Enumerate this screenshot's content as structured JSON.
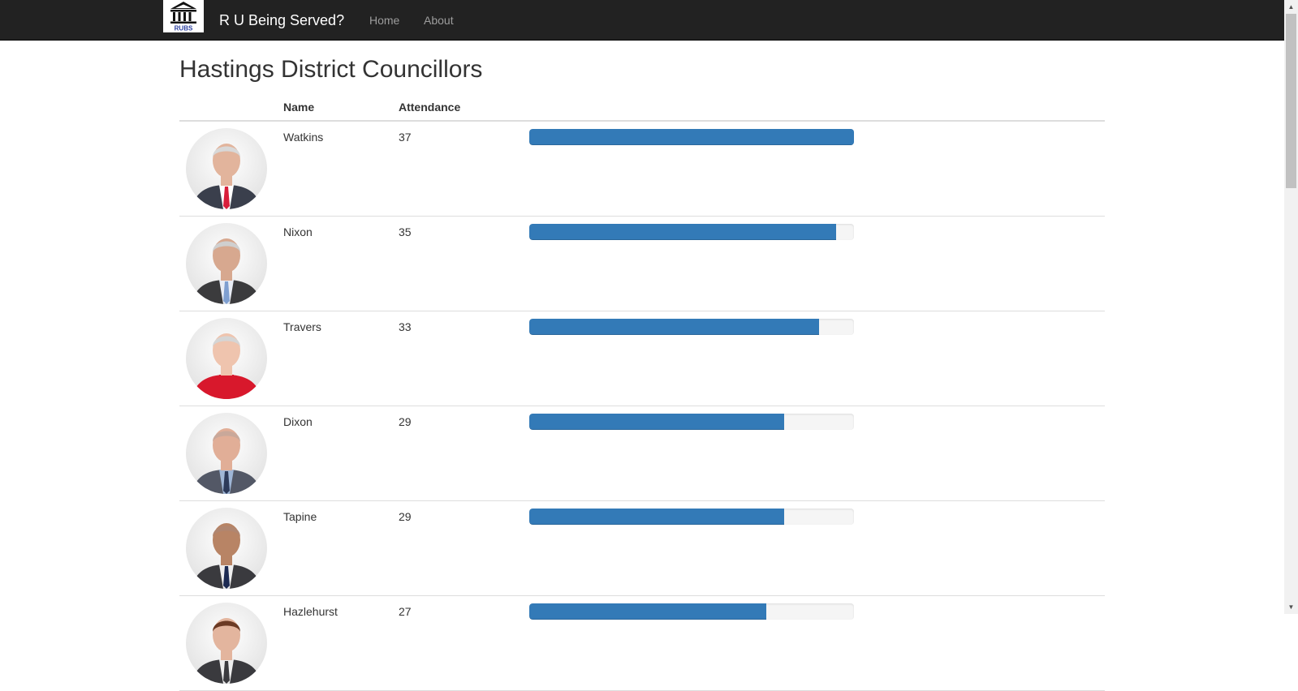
{
  "navbar": {
    "logo_text": "RUBS",
    "brand": "R U Being Served?",
    "links": [
      {
        "label": "Home"
      },
      {
        "label": "About"
      }
    ]
  },
  "page": {
    "title": "Hastings District Councillors"
  },
  "table": {
    "columns": [
      "",
      "Name",
      "Attendance",
      ""
    ],
    "max_attendance": 37,
    "rows": [
      {
        "name": "Watkins",
        "attendance": "37",
        "value": 37,
        "hair": "#d8d8d8",
        "skin": "#e2b49c",
        "jacket": "#3a3f4c",
        "shirt": "#ffffff",
        "tie": "#d81e3a"
      },
      {
        "name": "Nixon",
        "attendance": "35",
        "value": 35,
        "hair": "#cfcfcf",
        "skin": "#d7a88f",
        "jacket": "#3b3b3d",
        "shirt": "#e9edf5",
        "tie": "#7f9fd0"
      },
      {
        "name": "Travers",
        "attendance": "33",
        "value": 33,
        "hair": "#d5d5d5",
        "skin": "#efc4ae",
        "jacket": "#d8182c",
        "shirt": "#d8182c",
        "tie": "#d8182c"
      },
      {
        "name": "Dixon",
        "attendance": "29",
        "value": 29,
        "hair": "#c9a89a",
        "skin": "#e1ae97",
        "jacket": "#535866",
        "shirt": "#9fb6d6",
        "tie": "#2c3a5a"
      },
      {
        "name": "Tapine",
        "attendance": "29",
        "value": 29,
        "hair": "#b08670",
        "skin": "#b88465",
        "jacket": "#3a3a3e",
        "shirt": "#eeeeee",
        "tie": "#1c2a52"
      },
      {
        "name": "Hazlehurst",
        "attendance": "27",
        "value": 27,
        "hair": "#6b3a24",
        "skin": "#e3b59e",
        "jacket": "#3a3a3e",
        "shirt": "#eeeeee",
        "tie": "#3a3a3e"
      }
    ]
  }
}
